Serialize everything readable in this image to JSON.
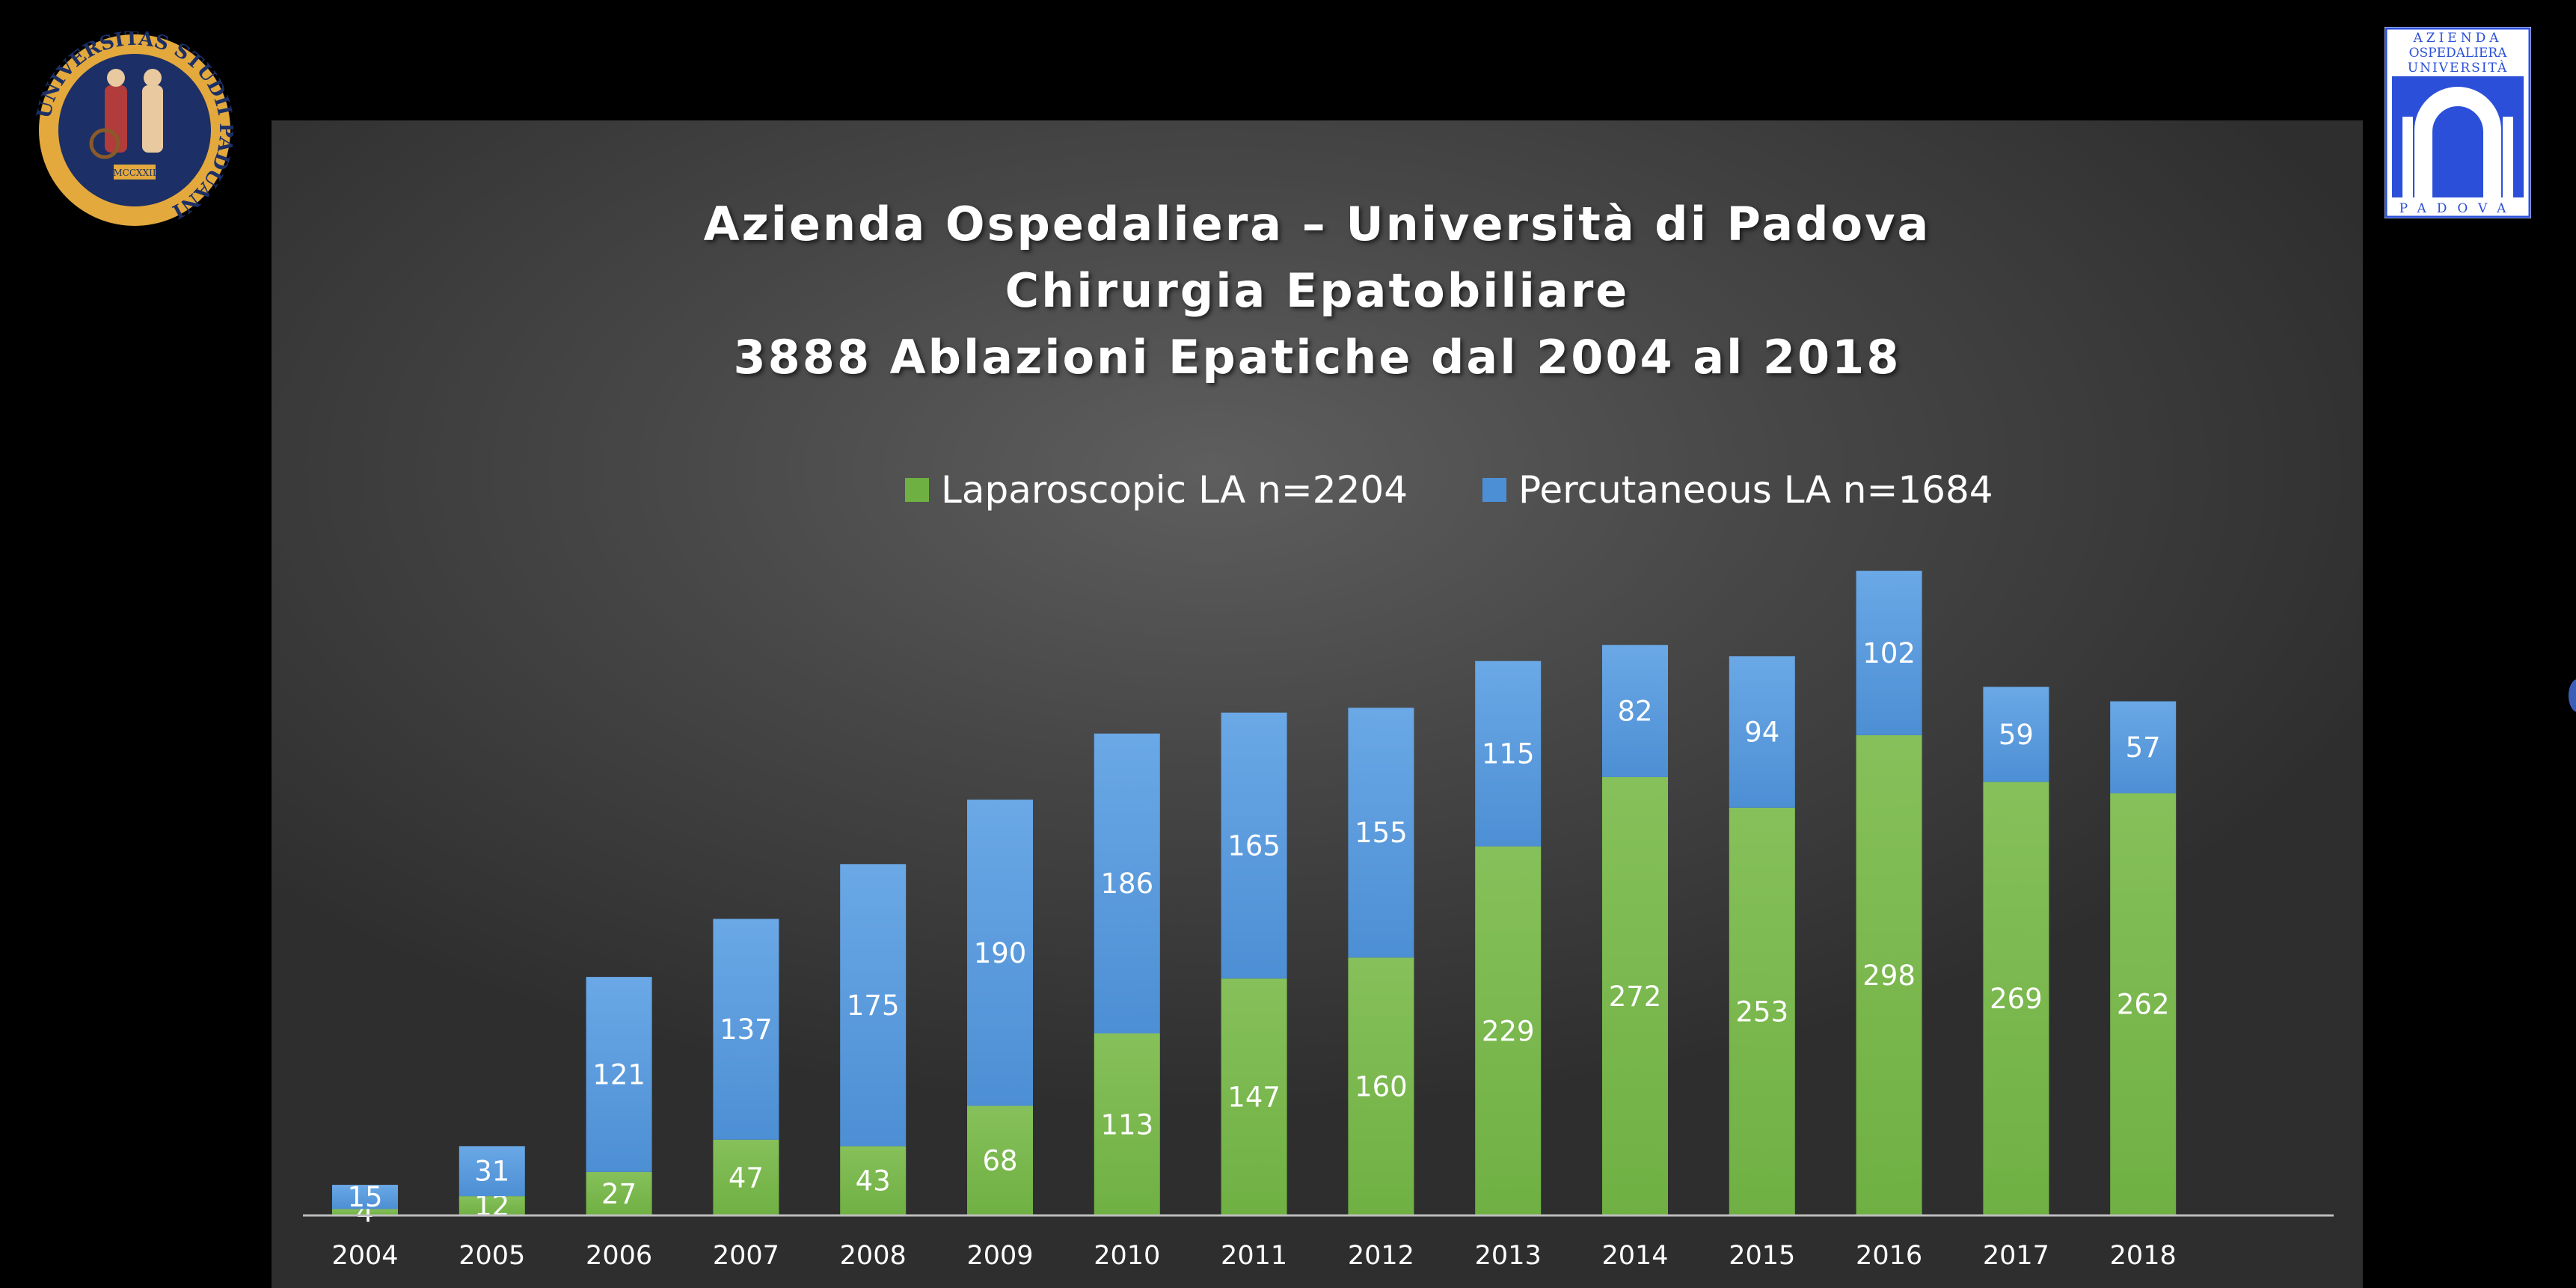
{
  "logos": {
    "seal_text": "UNIVERSITAS STUDII PADUANI",
    "seal_year": "MCCXXII",
    "hospital_logo_top": [
      "AZIENDA",
      "OSPEDALIERA",
      "UNIVERSITÀ"
    ],
    "hospital_logo_bottom": "PADOVA"
  },
  "chart_data": {
    "type": "bar",
    "stacked": true,
    "title": [
      "Azienda Ospedaliera – Università di Padova",
      "Chirurgia Epatobiliare",
      "3888 Ablazioni Epatiche dal 2004 al 2018"
    ],
    "categories": [
      "2004",
      "2005",
      "2006",
      "2007",
      "2008",
      "2009",
      "2010",
      "2011",
      "2012",
      "2013",
      "2014",
      "2015",
      "2016",
      "2017",
      "2018"
    ],
    "series": [
      {
        "name": "Laparoscopic LA n=2204",
        "color": "#6fb043",
        "values": [
          4,
          12,
          27,
          47,
          43,
          68,
          113,
          147,
          160,
          229,
          272,
          253,
          298,
          269,
          262
        ]
      },
      {
        "name": "Percutaneous LA n=1684",
        "color": "#4d8fd4",
        "values": [
          15,
          31,
          121,
          137,
          175,
          190,
          186,
          165,
          155,
          115,
          82,
          94,
          102,
          59,
          57
        ]
      }
    ],
    "ylim": [
      0,
      420
    ],
    "legend_position": "top-center",
    "grid": false,
    "data_labels": true
  }
}
